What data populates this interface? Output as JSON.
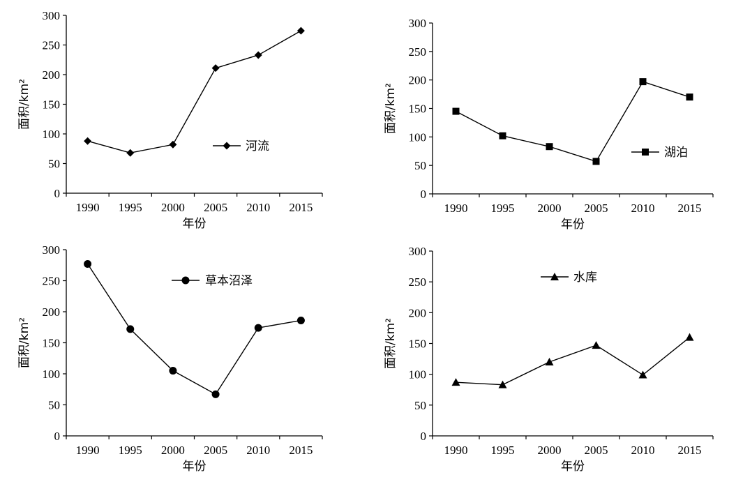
{
  "chart_data": [
    {
      "type": "line",
      "categories": [
        "1990",
        "1995",
        "2000",
        "2005",
        "2010",
        "2015"
      ],
      "series": [
        {
          "name": "河流",
          "values": [
            88,
            68,
            82,
            211,
            233,
            274
          ],
          "marker": "diamond"
        }
      ],
      "xlabel": "年份",
      "ylabel": "面积/km²",
      "ylim": [
        0,
        300
      ],
      "yticks": [
        "0",
        "50",
        "100",
        "150",
        "200",
        "250",
        "300"
      ],
      "grid": false,
      "legend": "right"
    },
    {
      "type": "line",
      "categories": [
        "1990",
        "1995",
        "2000",
        "2005",
        "2010",
        "2015"
      ],
      "series": [
        {
          "name": "湖泊",
          "values": [
            145,
            102,
            83,
            57,
            197,
            170
          ],
          "marker": "square"
        }
      ],
      "xlabel": "年份",
      "ylabel": "面积/km²",
      "ylim": [
        0,
        300
      ],
      "yticks": [
        "0",
        "50",
        "100",
        "150",
        "200",
        "250",
        "300"
      ],
      "grid": false,
      "legend": "bottom-right"
    },
    {
      "type": "line",
      "categories": [
        "1990",
        "1995",
        "2000",
        "2005",
        "2010",
        "2015"
      ],
      "series": [
        {
          "name": "草本沼泽",
          "values": [
            277,
            172,
            105,
            67,
            174,
            186
          ],
          "marker": "circle"
        }
      ],
      "xlabel": "年份",
      "ylabel": "面积/km²",
      "ylim": [
        0,
        300
      ],
      "yticks": [
        "0",
        "50",
        "100",
        "150",
        "200",
        "250",
        "300"
      ],
      "grid": false,
      "legend": "top-center"
    },
    {
      "type": "line",
      "categories": [
        "1990",
        "1995",
        "2000",
        "2005",
        "2010",
        "2015"
      ],
      "series": [
        {
          "name": "水库",
          "values": [
            87,
            83,
            120,
            147,
            99,
            160
          ],
          "marker": "triangle"
        }
      ],
      "xlabel": "年份",
      "ylabel": "面积/km²",
      "ylim": [
        0,
        300
      ],
      "yticks": [
        "0",
        "50",
        "100",
        "150",
        "200",
        "250",
        "300"
      ],
      "grid": false,
      "legend": "top-center"
    }
  ]
}
